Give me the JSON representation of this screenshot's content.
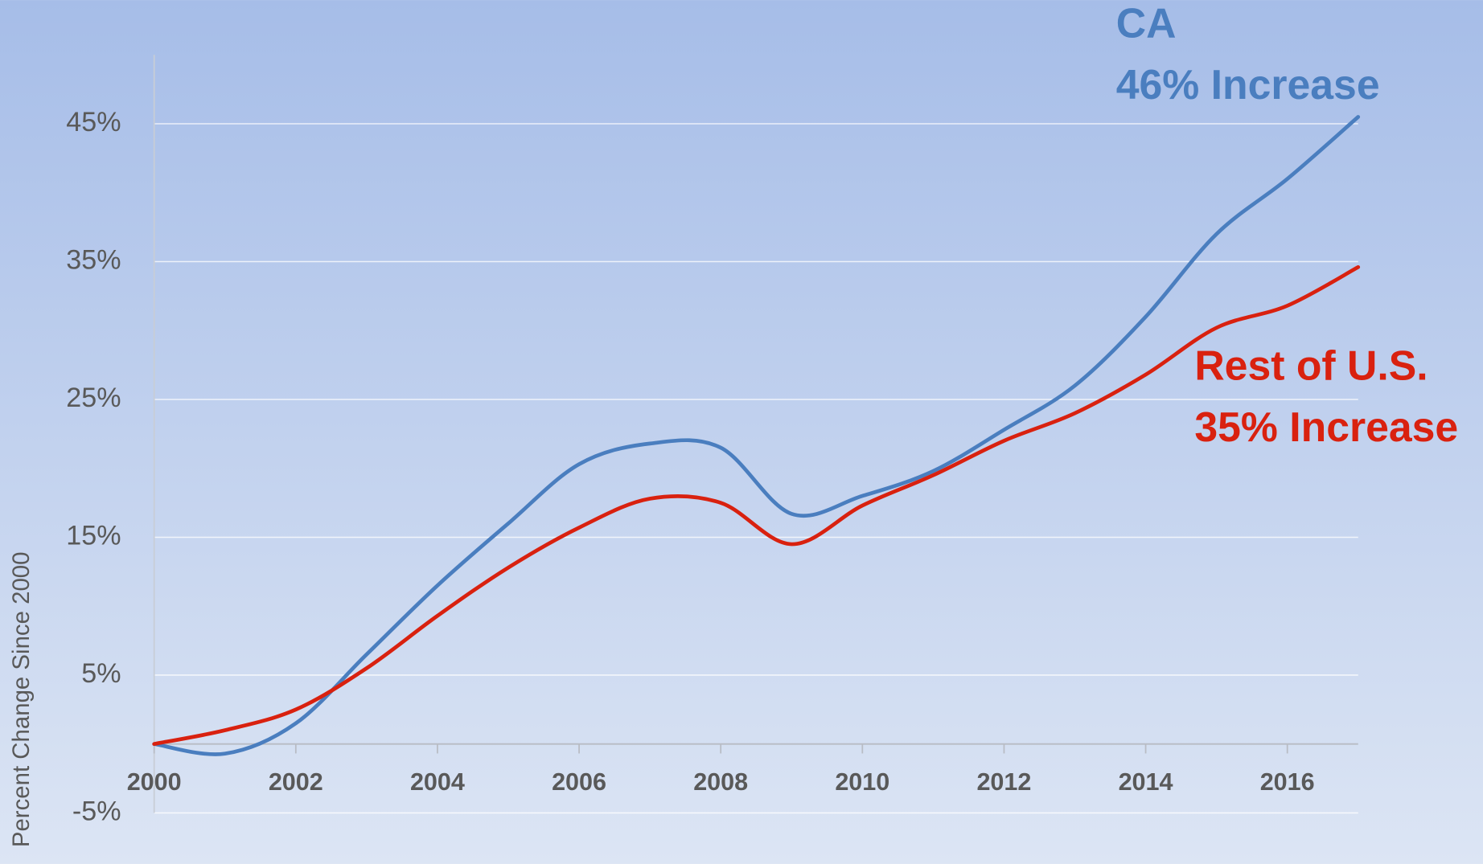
{
  "chart_data": {
    "type": "line",
    "y_label": "Percent Change Since 2000",
    "x": [
      2000,
      2001,
      2002,
      2003,
      2004,
      2005,
      2006,
      2007,
      2008,
      2009,
      2010,
      2011,
      2012,
      2013,
      2014,
      2015,
      2016,
      2017
    ],
    "series": [
      {
        "name": "CA",
        "color": "#4a7ebf",
        "values": [
          0,
          -0.7,
          1.5,
          6.5,
          11.5,
          16,
          20.3,
          21.8,
          21.5,
          16.7,
          18,
          19.8,
          22.8,
          26,
          31,
          37,
          41,
          45.5
        ]
      },
      {
        "name": "Rest of U.S.",
        "color": "#d9210f",
        "values": [
          0,
          1,
          2.5,
          5.5,
          9.3,
          12.8,
          15.7,
          17.8,
          17.5,
          14.5,
          17.3,
          19.5,
          22,
          24,
          26.8,
          30.2,
          31.8,
          34.6
        ]
      }
    ],
    "annotations": [
      "46% Increase",
      "35% Increase"
    ],
    "xlim": [
      2000,
      2017
    ],
    "xticks": [
      2000,
      2002,
      2004,
      2006,
      2008,
      2010,
      2012,
      2014,
      2016
    ],
    "ylim": [
      -5,
      50
    ],
    "yticks": [
      {
        "value": -5,
        "label": "-5%"
      },
      {
        "value": 5,
        "label": "5%"
      },
      {
        "value": 15,
        "label": "15%"
      },
      {
        "value": 25,
        "label": "25%"
      },
      {
        "value": 35,
        "label": "35%"
      },
      {
        "value": 45,
        "label": "45%"
      }
    ],
    "grid": true
  }
}
